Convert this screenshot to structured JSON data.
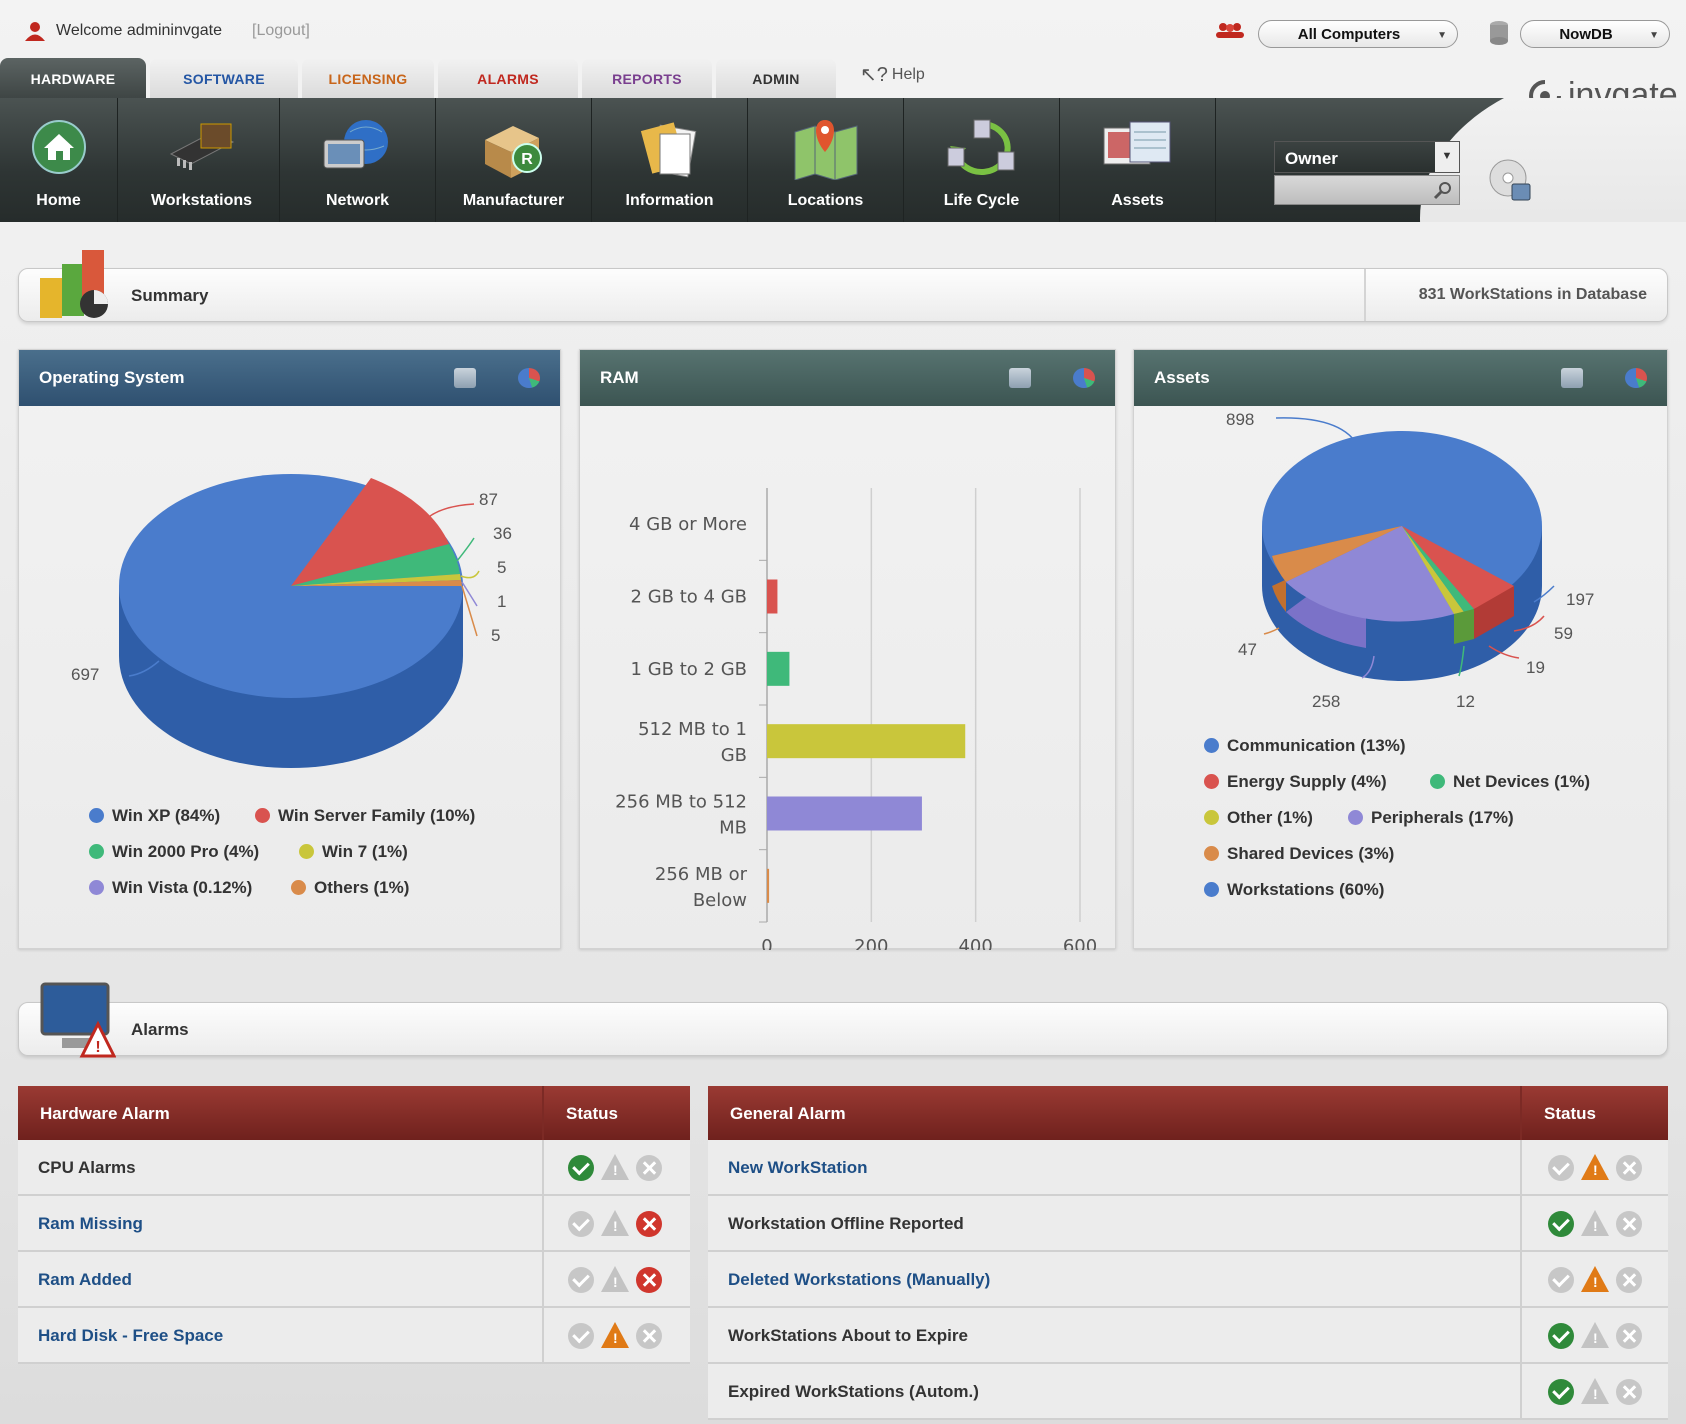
{
  "header": {
    "welcome": "Welcome admininvgate",
    "logout": "[Logout]",
    "computers_select": "All Computers",
    "db_select": "NowDB",
    "help": "Help",
    "logo": "invgate"
  },
  "tabs": [
    {
      "label": "HARDWARE",
      "color": "#ffffff"
    },
    {
      "label": "SOFTWARE",
      "color": "#2456a4"
    },
    {
      "label": "LICENSING",
      "color": "#c8651a"
    },
    {
      "label": "ALARMS",
      "color": "#c0281f"
    },
    {
      "label": "REPORTS",
      "color": "#7a3f8f"
    },
    {
      "label": "ADMIN",
      "color": "#333333"
    }
  ],
  "nav": [
    {
      "label": "Home",
      "icon": "home-icon"
    },
    {
      "label": "Workstations",
      "icon": "memory-chip-icon"
    },
    {
      "label": "Network",
      "icon": "globe-network-icon"
    },
    {
      "label": "Manufacturer",
      "icon": "box-registered-icon"
    },
    {
      "label": "Information",
      "icon": "documents-icon"
    },
    {
      "label": "Locations",
      "icon": "map-pin-icon"
    },
    {
      "label": "Life Cycle",
      "icon": "cycle-arrows-icon"
    },
    {
      "label": "Assets",
      "icon": "assets-docs-icon"
    }
  ],
  "owner_search": {
    "select": "Owner",
    "placeholder": ""
  },
  "summary": {
    "title": "Summary",
    "count_text": "831 WorkStations in Database"
  },
  "os_panel": {
    "title": "Operating System",
    "labels": [
      "87",
      "36",
      "5",
      "1",
      "5",
      "697"
    ],
    "legend": [
      {
        "label": "Win XP (84%)",
        "color": "#4a7ccc"
      },
      {
        "label": "Win Server Family (10%)",
        "color": "#d9534f"
      },
      {
        "label": "Win 2000 Pro (4%)",
        "color": "#3fb97a"
      },
      {
        "label": "Win 7 (1%)",
        "color": "#c9c63b"
      },
      {
        "label": "Win Vista (0.12%)",
        "color": "#8f88d6"
      },
      {
        "label": "Others (1%)",
        "color": "#d98b4a"
      }
    ]
  },
  "ram_panel": {
    "title": "RAM"
  },
  "chart_data": {
    "type": "bar",
    "categories": [
      "4 GB or More",
      "2 GB to 4 GB",
      "1 GB to 2 GB",
      "512 MB to 1 GB",
      "256 MB to 512 MB",
      "256 MB or Below"
    ],
    "values": [
      0,
      20,
      43,
      380,
      297,
      4
    ],
    "colors": [
      "#4a7ccc",
      "#d9534f",
      "#3fb97a",
      "#c9c63b",
      "#8f88d6",
      "#d98b4a"
    ],
    "xticks": [
      "0",
      "200",
      "400",
      "600"
    ],
    "xlim": [
      0,
      600
    ],
    "orientation": "horizontal",
    "grid": true
  },
  "assets_panel": {
    "title": "Assets",
    "labels": [
      "898",
      "197",
      "59",
      "19",
      "12",
      "258",
      "47"
    ],
    "legend": [
      {
        "label": "Communication (13%)",
        "color": "#4a7ccc"
      },
      {
        "label": "Energy Supply (4%)",
        "color": "#d9534f"
      },
      {
        "label": "Net Devices (1%)",
        "color": "#3fb97a"
      },
      {
        "label": "Other (1%)",
        "color": "#c9c63b"
      },
      {
        "label": "Peripherals (17%)",
        "color": "#8f88d6"
      },
      {
        "label": "Shared Devices (3%)",
        "color": "#d98b4a"
      },
      {
        "label": "Workstations (60%)",
        "color": "#4a7ccc"
      }
    ]
  },
  "alarms": {
    "title": "Alarms",
    "hardware": {
      "header": "Hardware Alarm",
      "status_header": "Status",
      "rows": [
        {
          "name": "CPU Alarms",
          "link": false,
          "status": [
            "check",
            "tri",
            "x"
          ]
        },
        {
          "name": "Ram Missing",
          "link": true,
          "status": [
            "grey",
            "tri",
            "xr"
          ]
        },
        {
          "name": "Ram Added",
          "link": true,
          "status": [
            "grey",
            "tri",
            "xr"
          ]
        },
        {
          "name": "Hard Disk - Free Space",
          "link": true,
          "status": [
            "grey",
            "warn",
            "x"
          ]
        }
      ]
    },
    "general": {
      "header": "General Alarm",
      "status_header": "Status",
      "rows": [
        {
          "name": "New WorkStation",
          "link": true,
          "status": [
            "grey",
            "warn",
            "x"
          ]
        },
        {
          "name": "Workstation Offline Reported",
          "link": false,
          "status": [
            "check",
            "tri",
            "x"
          ]
        },
        {
          "name": "Deleted Workstations (Manually)",
          "link": true,
          "status": [
            "grey",
            "warn",
            "x"
          ]
        },
        {
          "name": "WorkStations About to Expire",
          "link": false,
          "status": [
            "check",
            "tri",
            "x"
          ]
        },
        {
          "name": "Expired WorkStations (Autom.)",
          "link": false,
          "status": [
            "check",
            "tri",
            "x"
          ]
        }
      ]
    }
  }
}
